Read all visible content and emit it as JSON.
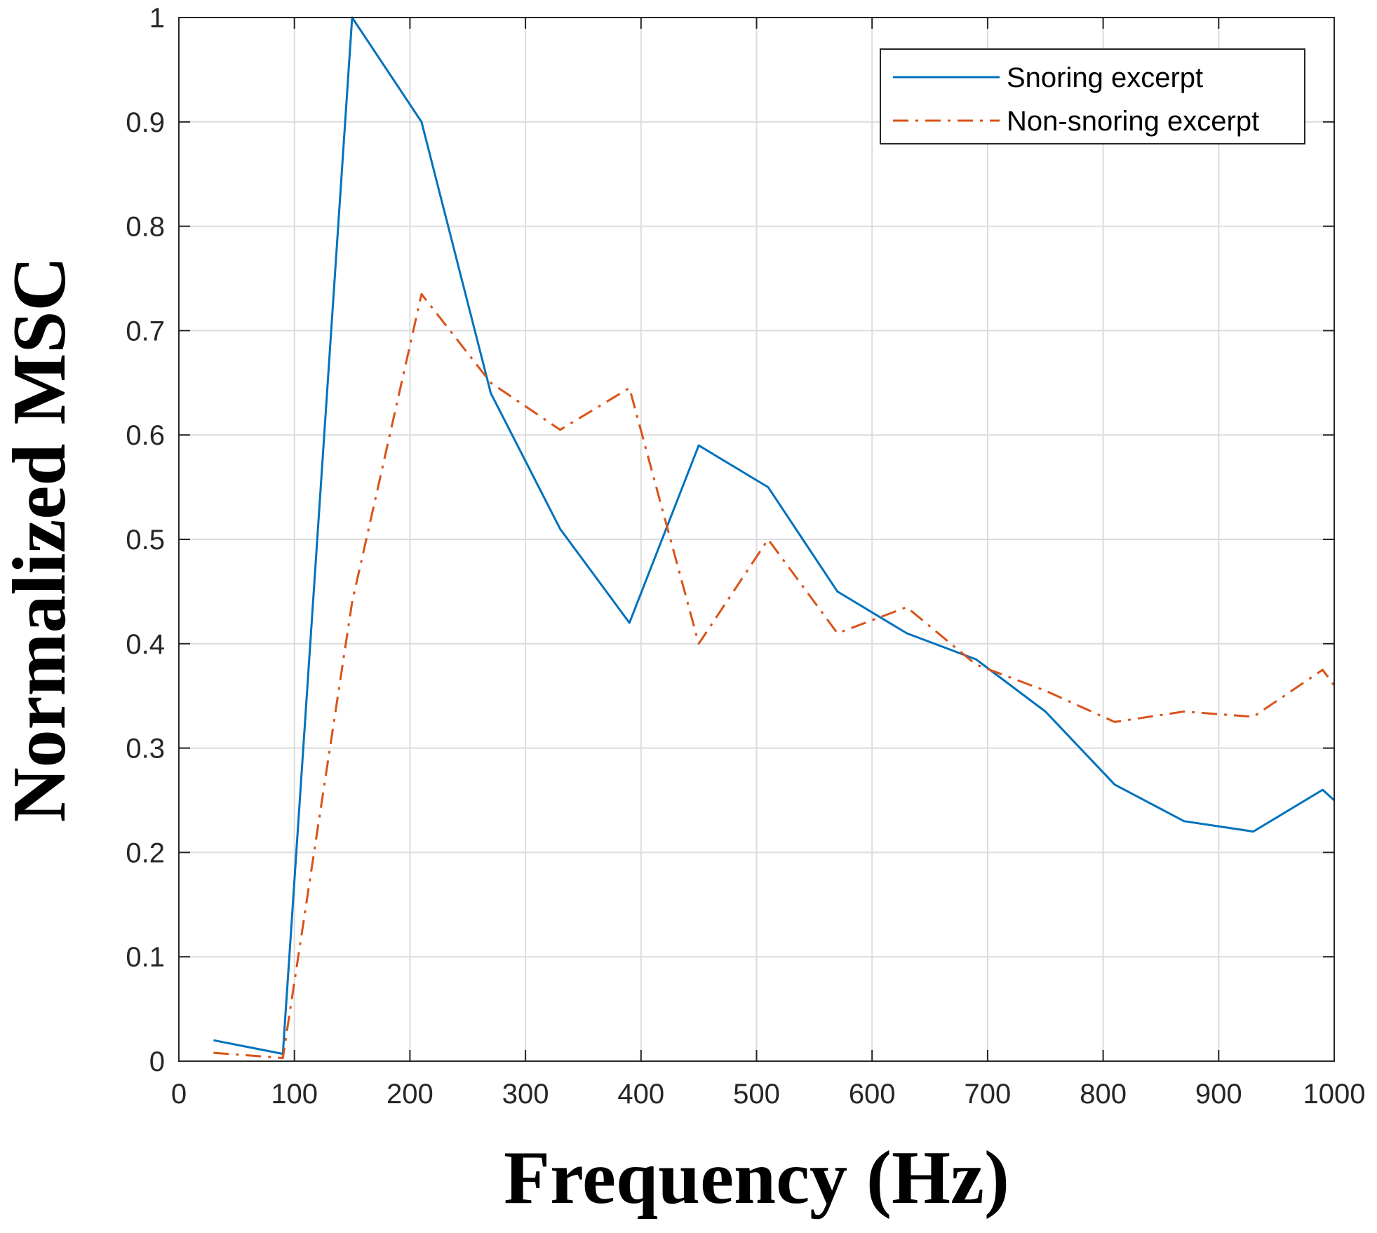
{
  "chart_data": {
    "type": "line",
    "title": "",
    "xlabel": "Frequency (Hz)",
    "ylabel": "Normalized MSC",
    "xlim": [
      0,
      1000
    ],
    "ylim": [
      0,
      1
    ],
    "grid": true,
    "legend_position": "top-right",
    "xticks": [
      0,
      100,
      200,
      300,
      400,
      500,
      600,
      700,
      800,
      900,
      1000
    ],
    "xtick_labels": [
      "0",
      "100",
      "200",
      "300",
      "400",
      "500",
      "600",
      "700",
      "800",
      "900",
      "1000"
    ],
    "yticks": [
      0,
      0.1,
      0.2,
      0.3,
      0.4,
      0.5,
      0.6,
      0.7,
      0.8,
      0.9,
      1
    ],
    "ytick_labels": [
      "0",
      "0.1",
      "0.2",
      "0.3",
      "0.4",
      "0.5",
      "0.6",
      "0.7",
      "0.8",
      "0.9",
      "1"
    ],
    "series": [
      {
        "name": "Snoring excerpt",
        "color": "#0072BD",
        "style": "solid",
        "x": [
          30,
          90,
          150,
          210,
          270,
          330,
          390,
          450,
          510,
          570,
          630,
          690,
          750,
          810,
          870,
          930,
          990,
          1000
        ],
        "y": [
          0.02,
          0.007,
          1.0,
          0.9,
          0.64,
          0.51,
          0.42,
          0.59,
          0.55,
          0.45,
          0.41,
          0.385,
          0.335,
          0.265,
          0.23,
          0.22,
          0.26,
          0.25
        ]
      },
      {
        "name": "Non-snoring excerpt",
        "color": "#D95319",
        "style": "dashdot",
        "x": [
          30,
          90,
          150,
          210,
          270,
          330,
          390,
          450,
          510,
          570,
          630,
          690,
          750,
          810,
          870,
          930,
          990,
          1000
        ],
        "y": [
          0.008,
          0.003,
          0.44,
          0.735,
          0.65,
          0.605,
          0.645,
          0.4,
          0.5,
          0.41,
          0.435,
          0.38,
          0.355,
          0.325,
          0.335,
          0.33,
          0.375,
          0.36
        ]
      }
    ]
  }
}
